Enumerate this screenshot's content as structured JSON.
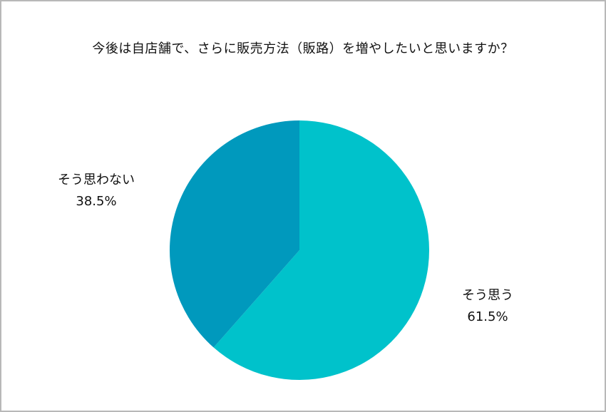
{
  "chart_data": {
    "type": "pie",
    "title": "今後は自店舗で、さらに販売方法（販路）を増やしたいと思いますか？",
    "slices": [
      {
        "label": "そう思う",
        "value": 61.5,
        "value_label": "61.5%",
        "color": "#00c2cb"
      },
      {
        "label": "そう思わない",
        "value": 38.5,
        "value_label": "38.5%",
        "color": "#0099bd"
      }
    ],
    "start_angle": "12 o'clock",
    "direction": "clockwise",
    "legend": "none"
  }
}
